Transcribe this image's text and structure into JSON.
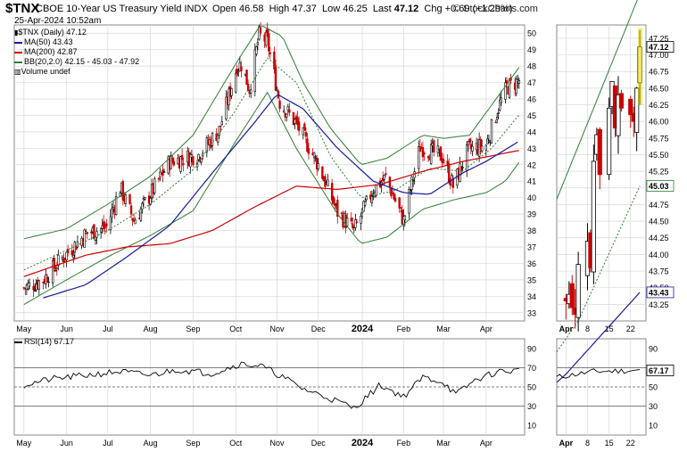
{
  "header": {
    "symbol": "$TNX",
    "description": "CBOE 10-Year US Treasury Yield INDX",
    "date": "25-Apr-2024 10:52am",
    "open_label": "Open",
    "open": "46.58",
    "high_label": "High",
    "high": "47.37",
    "low_label": "Low",
    "low": "46.25",
    "last_label": "Last",
    "last": "47.12",
    "chg_label": "Chg",
    "chg": "+0.60 (+1.29%)",
    "copyright": "© StockCharts.com"
  },
  "legend": {
    "price": "$TNX (Daily) 47.12",
    "ma50": "MA(50) 43.43",
    "ma200": "MA(200) 42.87",
    "bb": "BB(20,2.0) 42.15 - 45.03 - 47.92",
    "volume": "Volume undef"
  },
  "rsi_label": "RSI(14) 67.17",
  "colors": {
    "up": "#000000",
    "down": "#cc0000",
    "ma50": "#1a1a99",
    "ma200": "#cc0000",
    "bb": "#2e7d32",
    "grid": "#d8d8d8",
    "last_marker": "#e8d800"
  },
  "chart_data": [
    {
      "type": "candlestick",
      "title": "$TNX (Daily)",
      "ylim": [
        32.5,
        50.5
      ],
      "y_ticks": [
        33,
        34,
        35,
        36,
        37,
        38,
        39,
        40,
        41,
        42,
        43,
        44,
        45,
        46,
        47,
        48,
        49,
        50
      ],
      "x_tick_labels": [
        "May",
        "Jun",
        "Jul",
        "Aug",
        "Sep",
        "Oct",
        "Nov",
        "Dec",
        "2024",
        "Feb",
        "Mar",
        "Apr"
      ],
      "close_path": [
        [
          "2023-05-01",
          34.5
        ],
        [
          "2023-05-15",
          35.0
        ],
        [
          "2023-05-31",
          36.5
        ],
        [
          "2023-06-15",
          37.8
        ],
        [
          "2023-06-30",
          38.2
        ],
        [
          "2023-07-10",
          40.6
        ],
        [
          "2023-07-20",
          38.6
        ],
        [
          "2023-08-01",
          40.2
        ],
        [
          "2023-08-15",
          42.2
        ],
        [
          "2023-08-25",
          42.4
        ],
        [
          "2023-09-05",
          42.6
        ],
        [
          "2023-09-20",
          44.1
        ],
        [
          "2023-10-03",
          48.0
        ],
        [
          "2023-10-06",
          48.1
        ],
        [
          "2023-10-12",
          46.6
        ],
        [
          "2023-10-19",
          49.9
        ],
        [
          "2023-10-25",
          49.5
        ],
        [
          "2023-11-03",
          45.8
        ],
        [
          "2023-11-15",
          44.5
        ],
        [
          "2023-12-01",
          42.0
        ],
        [
          "2023-12-15",
          39.1
        ],
        [
          "2023-12-27",
          38.0
        ],
        [
          "2024-01-10",
          40.5
        ],
        [
          "2024-01-19",
          41.2
        ],
        [
          "2024-02-01",
          38.6
        ],
        [
          "2024-02-13",
          43.1
        ],
        [
          "2024-02-29",
          42.5
        ],
        [
          "2024-03-08",
          40.7
        ],
        [
          "2024-03-19",
          42.9
        ],
        [
          "2024-04-01",
          43.2
        ],
        [
          "2024-04-10",
          45.5
        ],
        [
          "2024-04-16",
          46.7
        ],
        [
          "2024-04-25",
          47.12
        ]
      ],
      "ma50_path": [
        [
          "2023-05-15",
          33.9
        ],
        [
          "2023-06-15",
          34.7
        ],
        [
          "2023-07-15",
          36.4
        ],
        [
          "2023-08-15",
          38.3
        ],
        [
          "2023-09-15",
          41.5
        ],
        [
          "2023-10-15",
          44.5
        ],
        [
          "2023-11-01",
          46.3
        ],
        [
          "2023-11-20",
          45.4
        ],
        [
          "2023-12-15",
          43.0
        ],
        [
          "2024-01-10",
          41.0
        ],
        [
          "2024-02-01",
          40.3
        ],
        [
          "2024-02-20",
          40.2
        ],
        [
          "2024-03-15",
          41.5
        ],
        [
          "2024-04-01",
          42.2
        ],
        [
          "2024-04-25",
          43.43
        ]
      ],
      "ma200_path": [
        [
          "2023-05-01",
          35.2
        ],
        [
          "2023-06-15",
          36.5
        ],
        [
          "2023-07-15",
          37.0
        ],
        [
          "2023-08-15",
          37.2
        ],
        [
          "2023-09-15",
          38.0
        ],
        [
          "2023-10-15",
          39.4
        ],
        [
          "2023-11-15",
          40.7
        ],
        [
          "2023-12-15",
          40.5
        ],
        [
          "2024-01-15",
          40.8
        ],
        [
          "2024-02-15",
          41.6
        ],
        [
          "2024-03-15",
          42.2
        ],
        [
          "2024-04-25",
          42.87
        ]
      ],
      "bb_upper_path": [
        [
          "2023-05-01",
          37.5
        ],
        [
          "2023-06-01",
          38.1
        ],
        [
          "2023-07-01",
          39.6
        ],
        [
          "2023-08-01",
          41.3
        ],
        [
          "2023-09-01",
          43.8
        ],
        [
          "2023-10-01",
          48.0
        ],
        [
          "2023-10-20",
          50.5
        ],
        [
          "2023-11-05",
          49.8
        ],
        [
          "2023-11-20",
          47.0
        ],
        [
          "2023-12-10",
          44.2
        ],
        [
          "2024-01-01",
          42.0
        ],
        [
          "2024-01-20",
          42.4
        ],
        [
          "2024-02-15",
          43.8
        ],
        [
          "2024-03-01",
          43.6
        ],
        [
          "2024-03-20",
          43.8
        ],
        [
          "2024-04-10",
          46.2
        ],
        [
          "2024-04-25",
          47.92
        ]
      ],
      "bb_mid_path": [
        [
          "2023-05-01",
          35.6
        ],
        [
          "2023-06-01",
          36.8
        ],
        [
          "2023-07-01",
          38.0
        ],
        [
          "2023-08-01",
          39.6
        ],
        [
          "2023-09-01",
          41.7
        ],
        [
          "2023-10-01",
          45.2
        ],
        [
          "2023-10-25",
          48.5
        ],
        [
          "2023-11-15",
          47.0
        ],
        [
          "2023-12-10",
          42.5
        ],
        [
          "2024-01-01",
          40.0
        ],
        [
          "2024-01-25",
          40.4
        ],
        [
          "2024-02-20",
          41.8
        ],
        [
          "2024-03-15",
          41.6
        ],
        [
          "2024-04-05",
          43.0
        ],
        [
          "2024-04-25",
          45.03
        ]
      ],
      "bb_lower_path": [
        [
          "2023-05-01",
          33.5
        ],
        [
          "2023-06-01",
          35.0
        ],
        [
          "2023-07-01",
          36.4
        ],
        [
          "2023-08-01",
          37.7
        ],
        [
          "2023-09-01",
          39.2
        ],
        [
          "2023-10-01",
          43.3
        ],
        [
          "2023-10-25",
          46.4
        ],
        [
          "2023-11-15",
          43.0
        ],
        [
          "2023-12-15",
          39.0
        ],
        [
          "2024-01-01",
          37.2
        ],
        [
          "2024-01-20",
          37.6
        ],
        [
          "2024-02-15",
          39.3
        ],
        [
          "2024-03-10",
          39.9
        ],
        [
          "2024-04-01",
          40.3
        ],
        [
          "2024-04-15",
          41.0
        ],
        [
          "2024-04-25",
          42.15
        ]
      ]
    },
    {
      "type": "line",
      "title": "RSI(14)",
      "ylim": [
        0,
        100
      ],
      "y_ticks": [
        10,
        30,
        50,
        70,
        90
      ],
      "reference_lines": [
        30,
        50,
        70
      ],
      "x_tick_labels": [
        "May",
        "Jun",
        "Jul",
        "Aug",
        "Sep",
        "Oct",
        "Nov",
        "Dec",
        "2024",
        "Feb",
        "Mar",
        "Apr"
      ],
      "rsi_path": [
        [
          "2023-05-01",
          52
        ],
        [
          "2023-05-20",
          58
        ],
        [
          "2023-06-15",
          62
        ],
        [
          "2023-07-10",
          66
        ],
        [
          "2023-08-01",
          62
        ],
        [
          "2023-08-20",
          68
        ],
        [
          "2023-09-15",
          64
        ],
        [
          "2023-10-05",
          74
        ],
        [
          "2023-10-20",
          72
        ],
        [
          "2023-11-03",
          62
        ],
        [
          "2023-11-20",
          48
        ],
        [
          "2023-12-10",
          38
        ],
        [
          "2023-12-27",
          28
        ],
        [
          "2024-01-15",
          52
        ],
        [
          "2024-02-01",
          40
        ],
        [
          "2024-02-15",
          60
        ],
        [
          "2024-03-01",
          55
        ],
        [
          "2024-03-10",
          42
        ],
        [
          "2024-03-25",
          58
        ],
        [
          "2024-04-10",
          66
        ],
        [
          "2024-04-25",
          67.17
        ]
      ]
    },
    {
      "type": "candlestick",
      "title": "$TNX (Daily) zoom",
      "ylim": [
        43.0,
        47.45
      ],
      "y_ticks": [
        43.25,
        43.5,
        43.75,
        44,
        44.25,
        44.5,
        44.75,
        45,
        45.25,
        45.5,
        45.75,
        46,
        46.25,
        46.5,
        46.75,
        47,
        47.25
      ],
      "x_tick_labels": [
        "Apr",
        "8",
        "15",
        "22"
      ],
      "close_path": [
        [
          "2024-04-01",
          43.3
        ],
        [
          "2024-04-02",
          43.4
        ],
        [
          "2024-04-03",
          43.2
        ],
        [
          "2024-04-04",
          43.1
        ],
        [
          "2024-04-05",
          43.85
        ],
        [
          "2024-04-08",
          44.2
        ],
        [
          "2024-04-09",
          43.8
        ],
        [
          "2024-04-10",
          45.4
        ],
        [
          "2024-04-11",
          45.8
        ],
        [
          "2024-04-12",
          45.2
        ],
        [
          "2024-04-15",
          46.2
        ],
        [
          "2024-04-16",
          46.6
        ],
        [
          "2024-04-17",
          45.9
        ],
        [
          "2024-04-18",
          46.4
        ],
        [
          "2024-04-19",
          46.2
        ],
        [
          "2024-04-22",
          46.1
        ],
        [
          "2024-04-23",
          46.0
        ],
        [
          "2024-04-24",
          46.5
        ],
        [
          "2024-04-25",
          47.12
        ]
      ],
      "ma50_last": 43.43,
      "bb_mid_last": 45.03,
      "last_label": "47.12",
      "bb_mid_label": "45.03",
      "ma50_label": "43.43"
    },
    {
      "type": "line",
      "title": "RSI(14) zoom",
      "ylim": [
        0,
        100
      ],
      "y_ticks": [
        10,
        30,
        50,
        70,
        90
      ],
      "x_tick_labels": [
        "Apr",
        "8",
        "15",
        "22"
      ],
      "last_label": "67.17"
    }
  ]
}
